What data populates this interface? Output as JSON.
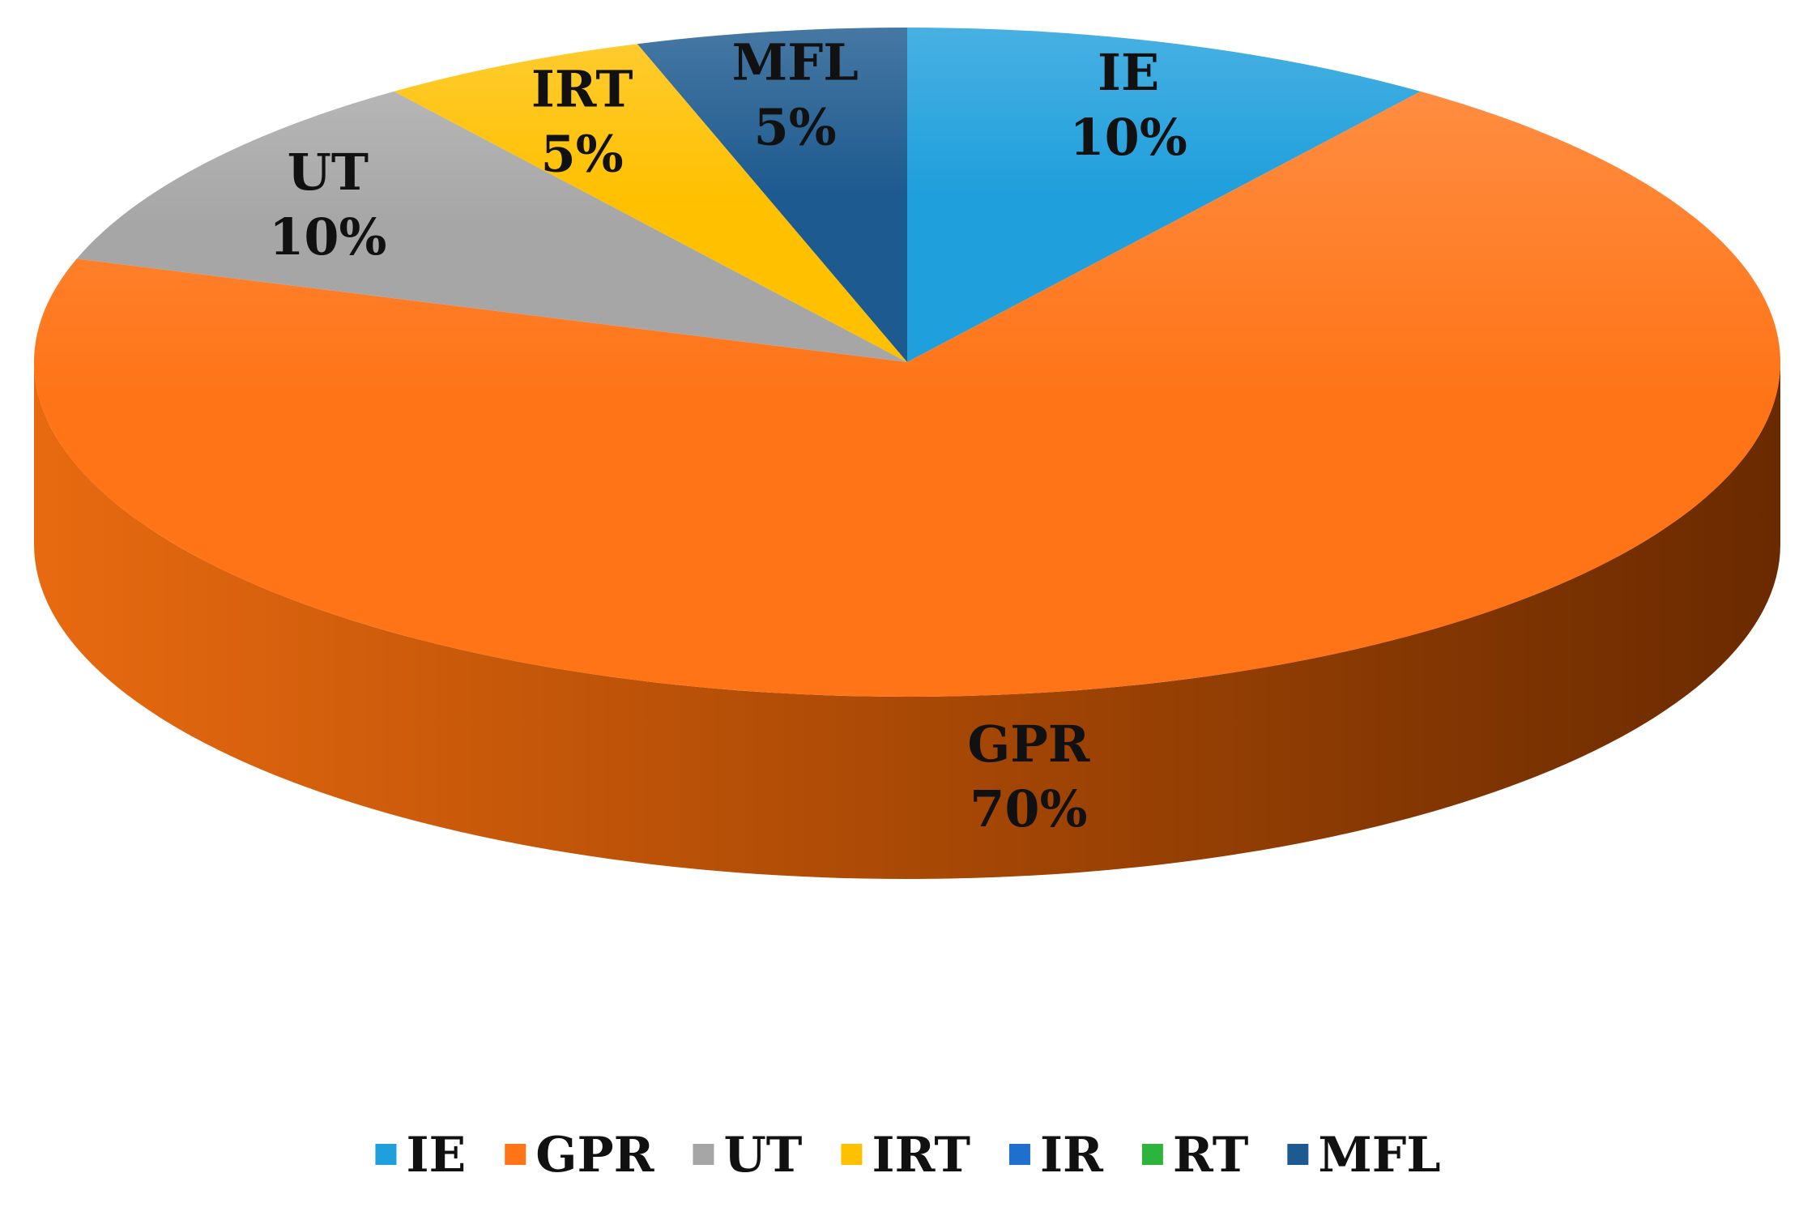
{
  "chart_data": {
    "type": "pie",
    "title": "",
    "style": "3d",
    "slices": [
      {
        "name": "IE",
        "value": 10,
        "label": "IE",
        "pct": "10%",
        "color": "#1f9fdc"
      },
      {
        "name": "GPR",
        "value": 70,
        "label": "GPR",
        "pct": "70%",
        "color": "#ff7417"
      },
      {
        "name": "UT",
        "value": 10,
        "label": "UT",
        "pct": "10%",
        "color": "#a6a6a6"
      },
      {
        "name": "IRT",
        "value": 5,
        "label": "IRT",
        "pct": "5%",
        "color": "#ffc000"
      },
      {
        "name": "IR",
        "value": 0,
        "label": "IR",
        "pct": "",
        "color": "#1f6fce"
      },
      {
        "name": "RT",
        "value": 0,
        "label": "RT",
        "pct": "",
        "color": "#2db43d"
      },
      {
        "name": "MFL",
        "value": 5,
        "label": "MFL",
        "pct": "5%",
        "color": "#1d5a8f"
      }
    ],
    "legend": {
      "placement": "bottom",
      "entries": [
        {
          "label": "IE",
          "color": "#1f9fdc"
        },
        {
          "label": "GPR",
          "color": "#ff7417"
        },
        {
          "label": "UT",
          "color": "#a6a6a6"
        },
        {
          "label": "IRT",
          "color": "#ffc000"
        },
        {
          "label": "IR",
          "color": "#1f6fce"
        },
        {
          "label": "RT",
          "color": "#2db43d"
        },
        {
          "label": "MFL",
          "color": "#1d5a8f"
        }
      ]
    }
  }
}
